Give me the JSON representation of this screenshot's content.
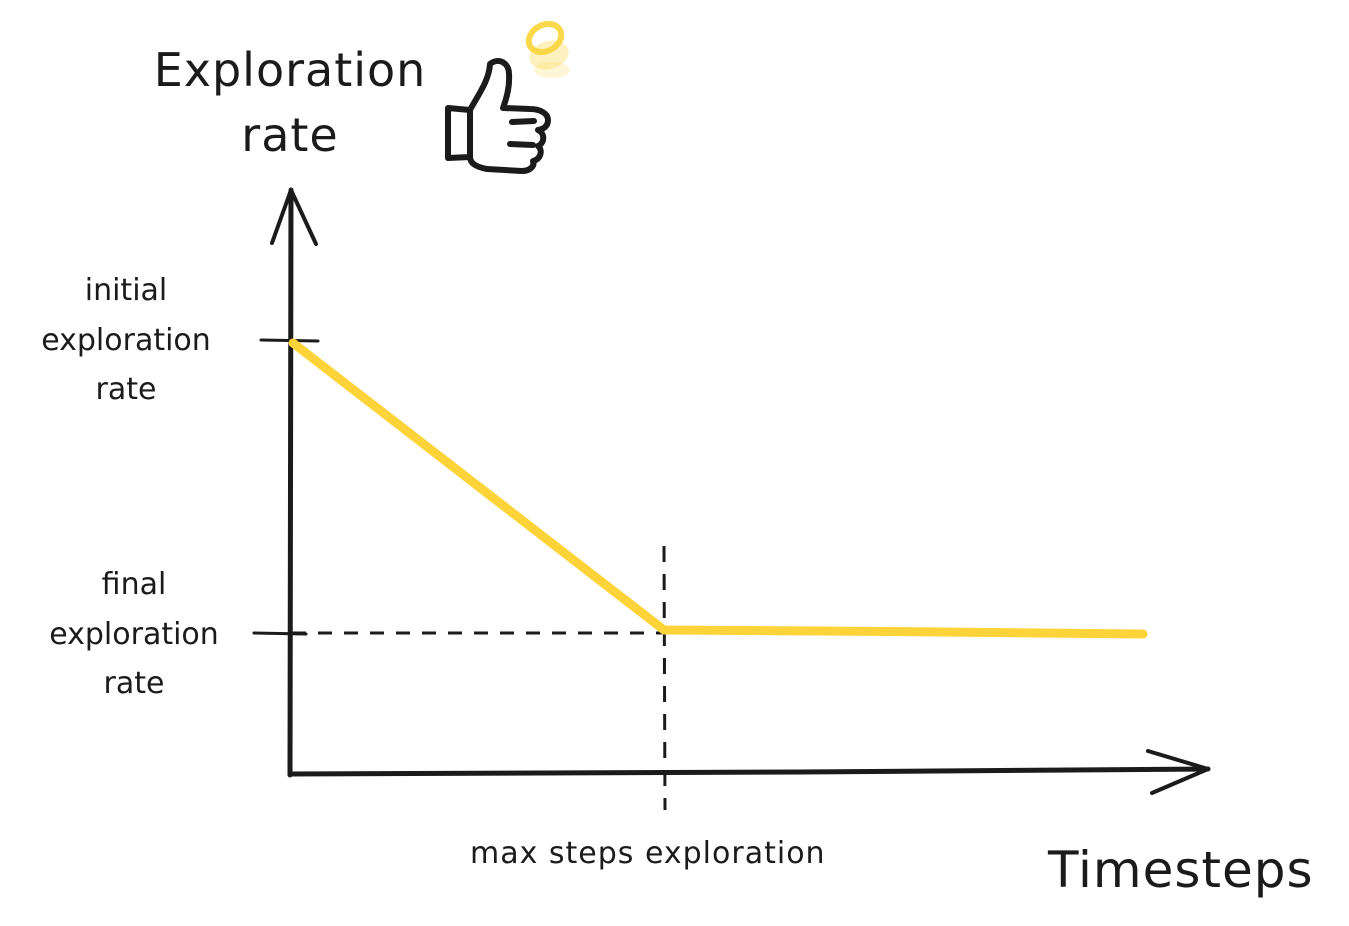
{
  "title": "",
  "labels": {
    "y_axis": "Exploration\nrate",
    "x_axis": "Timesteps",
    "initial_rate": "initial\nexploration\nrate",
    "final_rate": "final\nexploration\nrate",
    "max_steps": "max steps exploration"
  },
  "colors": {
    "curve": "#fdd33a",
    "ink": "#1b1b1b",
    "sparkle": "#f9d849"
  },
  "icons": {
    "decoration": "thumbs-up-icon"
  },
  "chart_data": {
    "type": "line",
    "xlabel": "Timesteps",
    "ylabel": "Exploration rate",
    "x_marks": [
      "max steps exploration"
    ],
    "y_marks": [
      "initial exploration rate",
      "final exploration rate"
    ],
    "grid": false,
    "series": [
      {
        "points": [
          {
            "x": 0,
            "y": "initial exploration rate"
          },
          {
            "x": "max steps exploration",
            "y": "final exploration rate"
          },
          {
            "x": "end",
            "y": "final exploration rate"
          }
        ]
      }
    ]
  }
}
